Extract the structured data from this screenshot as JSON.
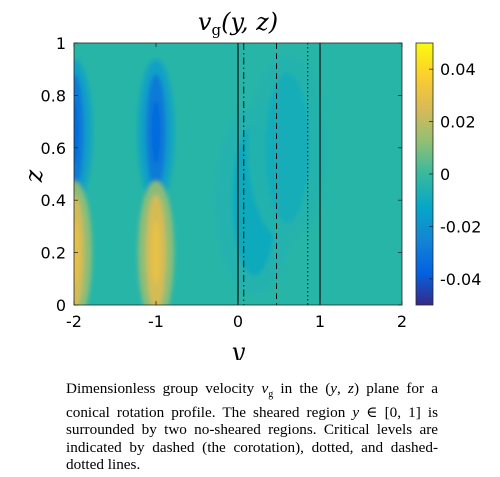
{
  "chart_data": {
    "type": "heatmap",
    "title": "v_g(y, z)",
    "xlabel": "y",
    "ylabel": "z",
    "xlim": [
      -2,
      2
    ],
    "ylim": [
      0,
      1
    ],
    "xticks": [
      "-2",
      "-1",
      "0",
      "1",
      "2"
    ],
    "yticks": [
      "0",
      "0.2",
      "0.4",
      "0.6",
      "0.8",
      "1"
    ],
    "colorbar": {
      "range": [
        -0.05,
        0.05
      ],
      "ticks": [
        "0.04",
        "0.02",
        "0",
        "-0.02",
        "-0.04"
      ],
      "colormap": "parula"
    },
    "features": [
      {
        "y": -2.0,
        "z": 0.66,
        "vg": -0.035
      },
      {
        "y": -2.0,
        "z": 0.2,
        "vg": 0.03
      },
      {
        "y": -1.0,
        "z": 0.66,
        "vg": -0.035
      },
      {
        "y": -1.0,
        "z": 0.2,
        "vg": 0.03
      },
      {
        "y": 0.2,
        "z": 0.4,
        "vg": -0.012
      },
      {
        "y": 0.6,
        "z": 0.6,
        "vg": -0.01
      }
    ],
    "critical_levels": [
      {
        "y": 0.0,
        "style": "solid"
      },
      {
        "y": 0.07,
        "style": "dashdot"
      },
      {
        "y": 0.47,
        "style": "dashed"
      },
      {
        "y": 0.85,
        "style": "dotted"
      },
      {
        "y": 1.0,
        "style": "solid"
      }
    ],
    "background_value": 0.0
  },
  "caption": "Dimensionless group velocity v_g in the (y, z) plane for a conical rotation profile. The sheared region y ∈ [0, 1] is surrounded by two no-sheared regions. Critical levels are indicated by dashed (the corotation), dotted, and dashed-dotted lines."
}
